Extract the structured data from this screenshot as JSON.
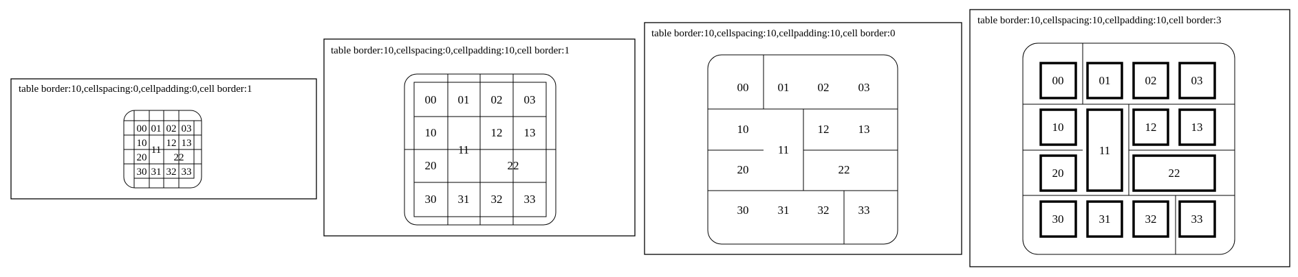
{
  "panels": [
    {
      "title": "table border:10,cellspacing:0,cellpadding:0,cell border:1",
      "cells": [
        "00",
        "01",
        "02",
        "03",
        "10",
        "11",
        "12",
        "13",
        "20",
        "22",
        "30",
        "31",
        "32",
        "33"
      ]
    },
    {
      "title": "table border:10,cellspacing:0,cellpadding:10,cell border:1",
      "cells": [
        "00",
        "01",
        "02",
        "03",
        "10",
        "11",
        "12",
        "13",
        "20",
        "22",
        "30",
        "31",
        "32",
        "33"
      ]
    },
    {
      "title": "table border:10,cellspacing:10,cellpadding:10,cell border:0",
      "cells": [
        "00",
        "01",
        "02",
        "03",
        "10",
        "11",
        "12",
        "13",
        "20",
        "22",
        "30",
        "31",
        "32",
        "33"
      ]
    },
    {
      "title": "table border:10,cellspacing:10,cellpadding:10,cell border:3",
      "cells": [
        "00",
        "01",
        "02",
        "03",
        "10",
        "11",
        "12",
        "13",
        "20",
        "22",
        "30",
        "31",
        "32",
        "33"
      ]
    }
  ]
}
